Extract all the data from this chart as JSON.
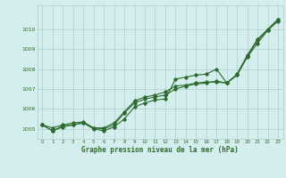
{
  "xlabel": "Graphe pression niveau de la mer (hPa)",
  "hours": [
    0,
    1,
    2,
    3,
    4,
    5,
    6,
    7,
    8,
    9,
    10,
    11,
    12,
    13,
    14,
    15,
    16,
    17,
    18,
    19,
    20,
    21,
    22,
    23
  ],
  "series1": [
    1005.2,
    1004.9,
    1005.1,
    1005.2,
    1005.3,
    1005.0,
    1004.9,
    1005.1,
    1005.5,
    1006.1,
    1006.3,
    1006.45,
    1006.5,
    1007.5,
    1007.6,
    1007.7,
    1007.75,
    1008.0,
    1007.3,
    1007.7,
    1008.6,
    1009.3,
    1009.95,
    1010.5
  ],
  "series2": [
    1005.2,
    1004.9,
    1005.15,
    1005.2,
    1005.3,
    1005.05,
    1005.0,
    1005.2,
    1005.8,
    1006.3,
    1006.5,
    1006.6,
    1006.7,
    1007.0,
    1007.15,
    1007.25,
    1007.3,
    1007.4,
    1007.3,
    1007.7,
    1008.65,
    1009.45,
    1009.95,
    1010.4
  ],
  "series3": [
    1005.2,
    1005.05,
    1005.2,
    1005.3,
    1005.35,
    1005.05,
    1005.05,
    1005.3,
    1005.85,
    1006.4,
    1006.6,
    1006.7,
    1006.85,
    1007.15,
    1007.2,
    1007.3,
    1007.35,
    1007.35,
    1007.3,
    1007.75,
    1008.7,
    1009.5,
    1010.0,
    1010.5
  ],
  "line_color": "#2d6a2d",
  "bg_color": "#d4eeee",
  "grid_color": "#b0cccc",
  "text_color": "#2d6a2d",
  "ylim_min": 1004.5,
  "ylim_max": 1011.2,
  "yticks": [
    1005,
    1006,
    1007,
    1008,
    1009,
    1010
  ]
}
